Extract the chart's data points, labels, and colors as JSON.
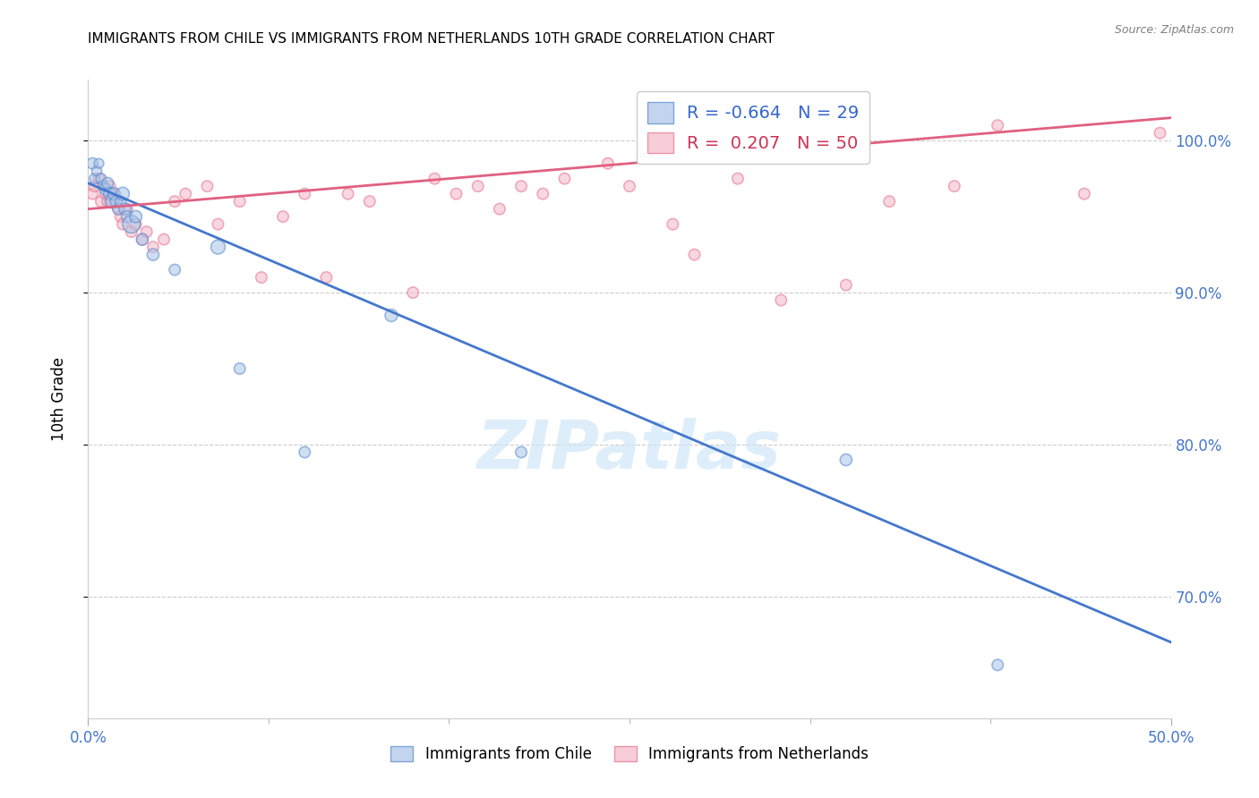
{
  "title": "IMMIGRANTS FROM CHILE VS IMMIGRANTS FROM NETHERLANDS 10TH GRADE CORRELATION CHART",
  "source": "Source: ZipAtlas.com",
  "ylabel": "10th Grade",
  "xlim": [
    0.0,
    50.0
  ],
  "ylim": [
    62.0,
    104.0
  ],
  "yticks_right": [
    70.0,
    80.0,
    90.0,
    100.0
  ],
  "ytick_labels_right": [
    "70.0%",
    "80.0%",
    "90.0%",
    "100.0%"
  ],
  "chile_R": -0.664,
  "chile_N": 29,
  "netherlands_R": 0.207,
  "netherlands_N": 50,
  "chile_color": "#aac4e8",
  "netherlands_color": "#f4b8c8",
  "chile_edge_color": "#5588cc",
  "netherlands_edge_color": "#e87090",
  "chile_line_color": "#4477cc",
  "netherlands_line_color": "#e06080",
  "watermark": "ZIPatlas",
  "background_color": "#ffffff",
  "grid_color": "#cccccc",
  "chile_scatter_x": [
    0.2,
    0.3,
    0.4,
    0.5,
    0.6,
    0.7,
    0.8,
    0.9,
    1.0,
    1.1,
    1.2,
    1.3,
    1.4,
    1.5,
    1.6,
    1.7,
    1.8,
    2.0,
    2.2,
    2.5,
    3.0,
    4.0,
    6.0,
    7.0,
    10.0,
    14.0,
    20.0,
    35.0,
    42.0
  ],
  "chile_scatter_y": [
    98.5,
    97.5,
    98.0,
    98.5,
    97.5,
    97.0,
    96.8,
    97.2,
    96.5,
    96.0,
    96.5,
    96.0,
    95.5,
    96.0,
    96.5,
    95.5,
    95.0,
    94.5,
    95.0,
    93.5,
    92.5,
    91.5,
    93.0,
    85.0,
    79.5,
    88.5,
    79.5,
    79.0,
    65.5
  ],
  "chile_scatter_size": [
    80,
    70,
    65,
    60,
    70,
    75,
    90,
    85,
    100,
    120,
    100,
    90,
    85,
    80,
    110,
    90,
    85,
    200,
    95,
    90,
    90,
    80,
    130,
    80,
    80,
    100,
    80,
    90,
    80
  ],
  "netherlands_scatter_x": [
    0.2,
    0.3,
    0.5,
    0.6,
    0.8,
    0.9,
    1.0,
    1.1,
    1.2,
    1.4,
    1.5,
    1.6,
    1.8,
    2.0,
    2.2,
    2.5,
    2.7,
    3.0,
    3.5,
    4.0,
    4.5,
    5.5,
    6.0,
    7.0,
    8.0,
    9.0,
    10.0,
    11.0,
    12.0,
    13.0,
    15.0,
    16.0,
    17.0,
    18.0,
    19.0,
    20.0,
    21.0,
    22.0,
    24.0,
    25.0,
    27.0,
    28.0,
    30.0,
    32.0,
    35.0,
    37.0,
    40.0,
    42.0,
    46.0,
    49.5
  ],
  "netherlands_scatter_y": [
    96.5,
    97.0,
    97.5,
    96.0,
    96.5,
    96.0,
    97.0,
    96.0,
    96.5,
    95.5,
    95.0,
    94.5,
    95.5,
    94.0,
    94.5,
    93.5,
    94.0,
    93.0,
    93.5,
    96.0,
    96.5,
    97.0,
    94.5,
    96.0,
    91.0,
    95.0,
    96.5,
    91.0,
    96.5,
    96.0,
    90.0,
    97.5,
    96.5,
    97.0,
    95.5,
    97.0,
    96.5,
    97.5,
    98.5,
    97.0,
    94.5,
    92.5,
    97.5,
    89.5,
    90.5,
    96.0,
    97.0,
    101.0,
    96.5,
    100.5
  ],
  "netherlands_scatter_size": [
    80,
    80,
    80,
    80,
    80,
    80,
    80,
    80,
    80,
    80,
    80,
    80,
    80,
    80,
    80,
    80,
    80,
    80,
    80,
    80,
    80,
    80,
    80,
    80,
    80,
    80,
    80,
    80,
    80,
    80,
    80,
    80,
    80,
    80,
    80,
    80,
    80,
    80,
    80,
    80,
    80,
    80,
    80,
    80,
    80,
    80,
    80,
    80,
    80,
    80
  ],
  "chile_trendline_x": [
    0.0,
    50.0
  ],
  "chile_trendline_y": [
    97.2,
    67.0
  ],
  "netherlands_trendline_x": [
    0.0,
    50.0
  ],
  "netherlands_trendline_y": [
    95.5,
    101.5
  ]
}
